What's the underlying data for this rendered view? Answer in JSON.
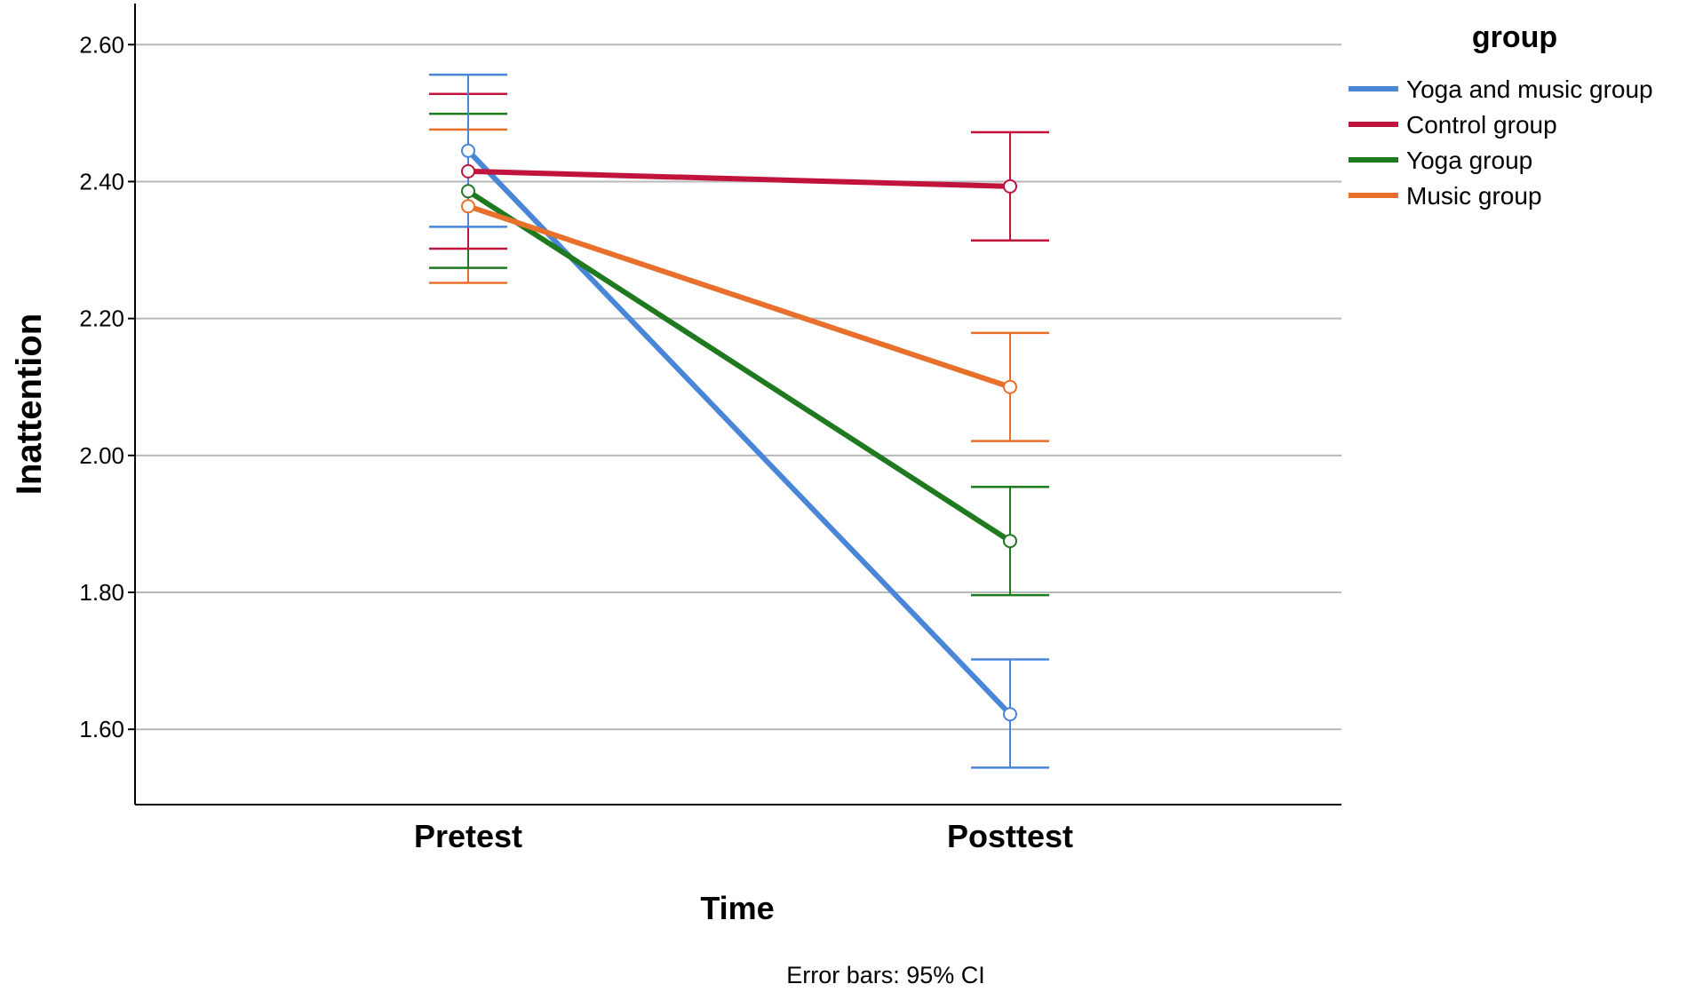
{
  "chart_data": {
    "type": "line",
    "title": "",
    "xlabel": "Time",
    "ylabel": "Inattention",
    "categories": [
      "Pretest",
      "Posttest"
    ],
    "ylim": [
      1.49,
      2.66
    ],
    "yticks": [
      1.6,
      1.8,
      2.0,
      2.2,
      2.4,
      2.6
    ],
    "ytick_labels": [
      "1.60",
      "1.80",
      "2.00",
      "2.20",
      "2.40",
      "2.60"
    ],
    "grid": "horizontal",
    "legend": {
      "title": "group",
      "placement": "top-right, outside plot"
    },
    "footnote": "Error bars: 95% CI",
    "series": [
      {
        "name": "Yoga and music group",
        "color": "#4a86d8",
        "values": [
          2.445,
          1.622
        ],
        "ci_low": [
          2.334,
          1.544
        ],
        "ci_high": [
          2.556,
          1.702
        ]
      },
      {
        "name": "Control group",
        "color": "#c0143c",
        "values": [
          2.415,
          2.393
        ],
        "ci_low": [
          2.302,
          2.314
        ],
        "ci_high": [
          2.528,
          2.472
        ]
      },
      {
        "name": "Yoga group",
        "color": "#1f7a1f",
        "values": [
          2.386,
          1.875
        ],
        "ci_low": [
          2.274,
          1.796
        ],
        "ci_high": [
          2.499,
          1.954
        ]
      },
      {
        "name": "Music group",
        "color": "#e8702a",
        "values": [
          2.364,
          2.1
        ],
        "ci_low": [
          2.252,
          2.021
        ],
        "ci_high": [
          2.476,
          2.179
        ]
      }
    ]
  }
}
